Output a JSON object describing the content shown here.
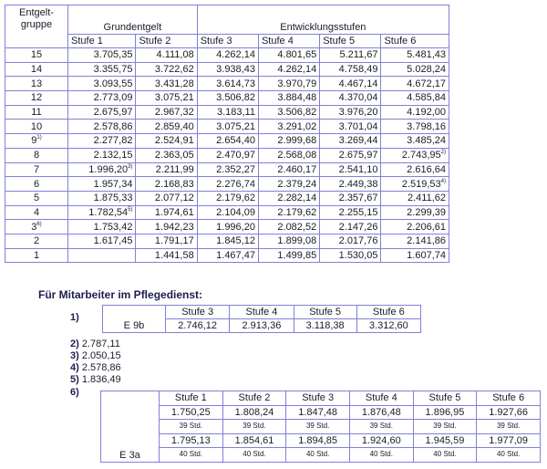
{
  "main": {
    "header": {
      "group": "Entgelt-",
      "group2": "gruppe",
      "grund": "Grundentgelt",
      "entw": "Entwicklungsstufen",
      "stufen": [
        "Stufe 1",
        "Stufe 2",
        "Stufe 3",
        "Stufe 4",
        "Stufe 5",
        "Stufe 6"
      ]
    },
    "rows": [
      {
        "g": "15",
        "sup": "",
        "v": [
          "3.705,35",
          "4.111,08",
          "4.262,14",
          "4.801,65",
          "5.211,67",
          "5.481,43"
        ],
        "s": [
          "",
          "",
          "",
          "",
          "",
          ""
        ]
      },
      {
        "g": "14",
        "sup": "",
        "v": [
          "3.355,75",
          "3.722,62",
          "3.938,43",
          "4.262,14",
          "4.758,49",
          "5.028,24"
        ],
        "s": [
          "",
          "",
          "",
          "",
          "",
          ""
        ]
      },
      {
        "g": "13",
        "sup": "",
        "v": [
          "3.093,55",
          "3.431,28",
          "3.614,73",
          "3.970,79",
          "4.467,14",
          "4.672,17"
        ],
        "s": [
          "",
          "",
          "",
          "",
          "",
          ""
        ]
      },
      {
        "g": "12",
        "sup": "",
        "v": [
          "2.773,09",
          "3.075,21",
          "3.506,82",
          "3.884,48",
          "4.370,04",
          "4.585,84"
        ],
        "s": [
          "",
          "",
          "",
          "",
          "",
          ""
        ]
      },
      {
        "g": "11",
        "sup": "",
        "v": [
          "2.675,97",
          "2.967,32",
          "3.183,11",
          "3.506,82",
          "3.976,20",
          "4.192,00"
        ],
        "s": [
          "",
          "",
          "",
          "",
          "",
          ""
        ]
      },
      {
        "g": "10",
        "sup": "",
        "v": [
          "2.578,86",
          "2.859,40",
          "3.075,21",
          "3.291,02",
          "3.701,04",
          "3.798,16"
        ],
        "s": [
          "",
          "",
          "",
          "",
          "",
          ""
        ]
      },
      {
        "g": "9",
        "sup": "1)",
        "v": [
          "2.277,82",
          "2.524,91",
          "2.654,40",
          "2.999,68",
          "3.269,44",
          "3.485,24"
        ],
        "s": [
          "",
          "",
          "",
          "",
          "",
          ""
        ]
      },
      {
        "g": "8",
        "sup": "",
        "v": [
          "2.132,15",
          "2.363,05",
          "2.470,97",
          "2.568,08",
          "2.675,97",
          "2.743,95"
        ],
        "s": [
          "",
          "",
          "",
          "",
          "",
          "2)"
        ]
      },
      {
        "g": "7",
        "sup": "",
        "v": [
          "1.996,20",
          "2.211,99",
          "2.352,27",
          "2.460,17",
          "2.541,10",
          "2.616,64"
        ],
        "s": [
          "3)",
          "",
          "",
          "",
          "",
          ""
        ]
      },
      {
        "g": "6",
        "sup": "",
        "v": [
          "1.957,34",
          "2.168,83",
          "2.276,74",
          "2.379,24",
          "2.449,38",
          "2.519,53"
        ],
        "s": [
          "",
          "",
          "",
          "",
          "",
          "4)"
        ]
      },
      {
        "g": "5",
        "sup": "",
        "v": [
          "1.875,33",
          "2.077,12",
          "2.179,62",
          "2.282,14",
          "2.357,67",
          "2.411,62"
        ],
        "s": [
          "",
          "",
          "",
          "",
          "",
          ""
        ]
      },
      {
        "g": "4",
        "sup": "",
        "v": [
          "1.782,54",
          "1.974,61",
          "2.104,09",
          "2.179,62",
          "2.255,15",
          "2.299,39"
        ],
        "s": [
          "5)",
          "",
          "",
          "",
          "",
          ""
        ]
      },
      {
        "g": "3",
        "sup": "6)",
        "v": [
          "1.753,42",
          "1.942,23",
          "1.996,20",
          "2.082,52",
          "2.147,26",
          "2.206,61"
        ],
        "s": [
          "",
          "",
          "",
          "",
          "",
          ""
        ]
      },
      {
        "g": "2",
        "sup": "",
        "v": [
          "1.617,45",
          "1.791,17",
          "1.845,12",
          "1.899,08",
          "2.017,76",
          "2.141,86"
        ],
        "s": [
          "",
          "",
          "",
          "",
          "",
          ""
        ]
      },
      {
        "g": "1",
        "sup": "",
        "v": [
          "",
          "1.441,58",
          "1.467,47",
          "1.499,85",
          "1.530,05",
          "1.607,74"
        ],
        "s": [
          "",
          "",
          "",
          "",
          "",
          ""
        ]
      }
    ]
  },
  "pflege": {
    "title": "Für Mitarbeiter im Pflegedienst:",
    "n1": "1)",
    "t1": {
      "label": "E 9b",
      "stufen": [
        "Stufe 3",
        "Stufe 4",
        "Stufe 5",
        "Stufe 6"
      ],
      "values": [
        "2.746,12",
        "2.913,36",
        "3.118,38",
        "3.312,60"
      ]
    },
    "notes": [
      {
        "n": "2)",
        "v": "2.787,11"
      },
      {
        "n": "3)",
        "v": "2.050,15"
      },
      {
        "n": "4)",
        "v": "2.578,86"
      },
      {
        "n": "5)",
        "v": "1.836,49"
      }
    ],
    "n6": "6)",
    "t2": {
      "label": "E 3a",
      "stufen": [
        "Stufe 1",
        "Stufe 2",
        "Stufe 3",
        "Stufe 4",
        "Stufe 5",
        "Stufe 6"
      ],
      "v39": [
        "1.750,25",
        "1.808,24",
        "1.847,48",
        "1.876,48",
        "1.896,95",
        "1.927,66"
      ],
      "h39": "39 Std.",
      "v40": [
        "1.795,13",
        "1.854,61",
        "1.894,85",
        "1.924,60",
        "1.945,59",
        "1.977,09"
      ],
      "h40": "40 Std."
    }
  }
}
